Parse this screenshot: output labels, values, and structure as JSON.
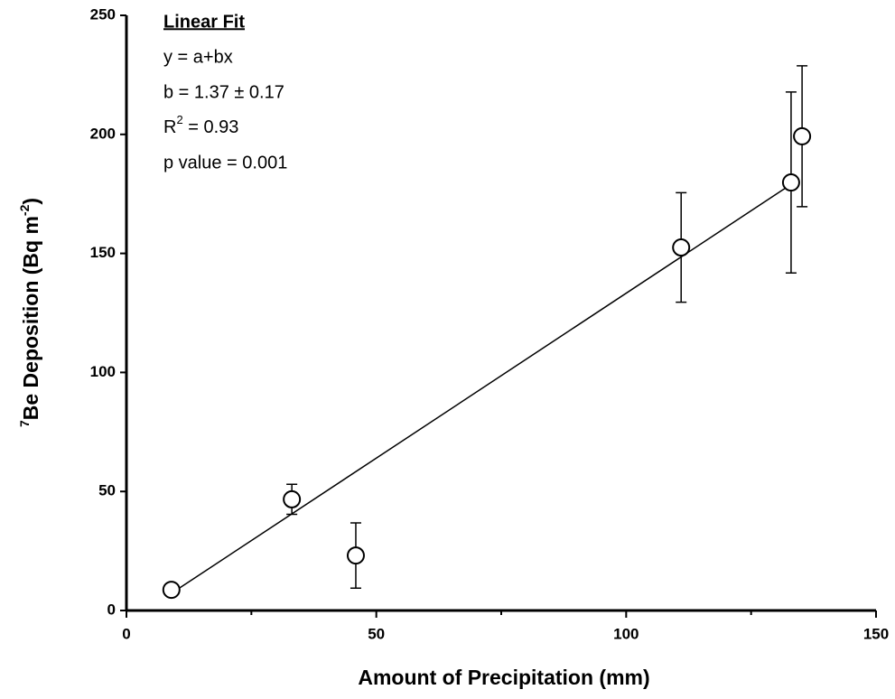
{
  "chart_data": {
    "type": "scatter",
    "xlabel": "Amount of Precipitation (mm)",
    "ylabel": {
      "sup": "7",
      "main": "Be Deposition (Bq m",
      "exp": "-2",
      "close": ")"
    },
    "annotation": {
      "title": "Linear Fit",
      "equation": "y = a+bx",
      "slope": "b = 1.37 ± 0.17",
      "r_base": "R",
      "r_sup": "2",
      "r_rest": " = 0.93",
      "p": "p value = 0.001"
    },
    "x": [
      9.0,
      33.1,
      45.9,
      111.0,
      133.0,
      135.2
    ],
    "series": [
      {
        "color": "#000000",
        "values": [
          8.7,
          46.7,
          23.1,
          152.5,
          179.8,
          199.2
        ],
        "errors": [
          2,
          6.3,
          13.7,
          23,
          38,
          29.6
        ]
      }
    ],
    "fit_line": {
      "x": [
        9,
        133
      ],
      "y": [
        7.2,
        179
      ]
    },
    "xlim": [
      0,
      150
    ],
    "xticks": [
      0,
      50,
      100,
      150
    ],
    "xminorticks": [
      25,
      75,
      125
    ],
    "ylim": [
      0,
      250
    ],
    "yticks": [
      0,
      50,
      100,
      150,
      200,
      250
    ]
  }
}
